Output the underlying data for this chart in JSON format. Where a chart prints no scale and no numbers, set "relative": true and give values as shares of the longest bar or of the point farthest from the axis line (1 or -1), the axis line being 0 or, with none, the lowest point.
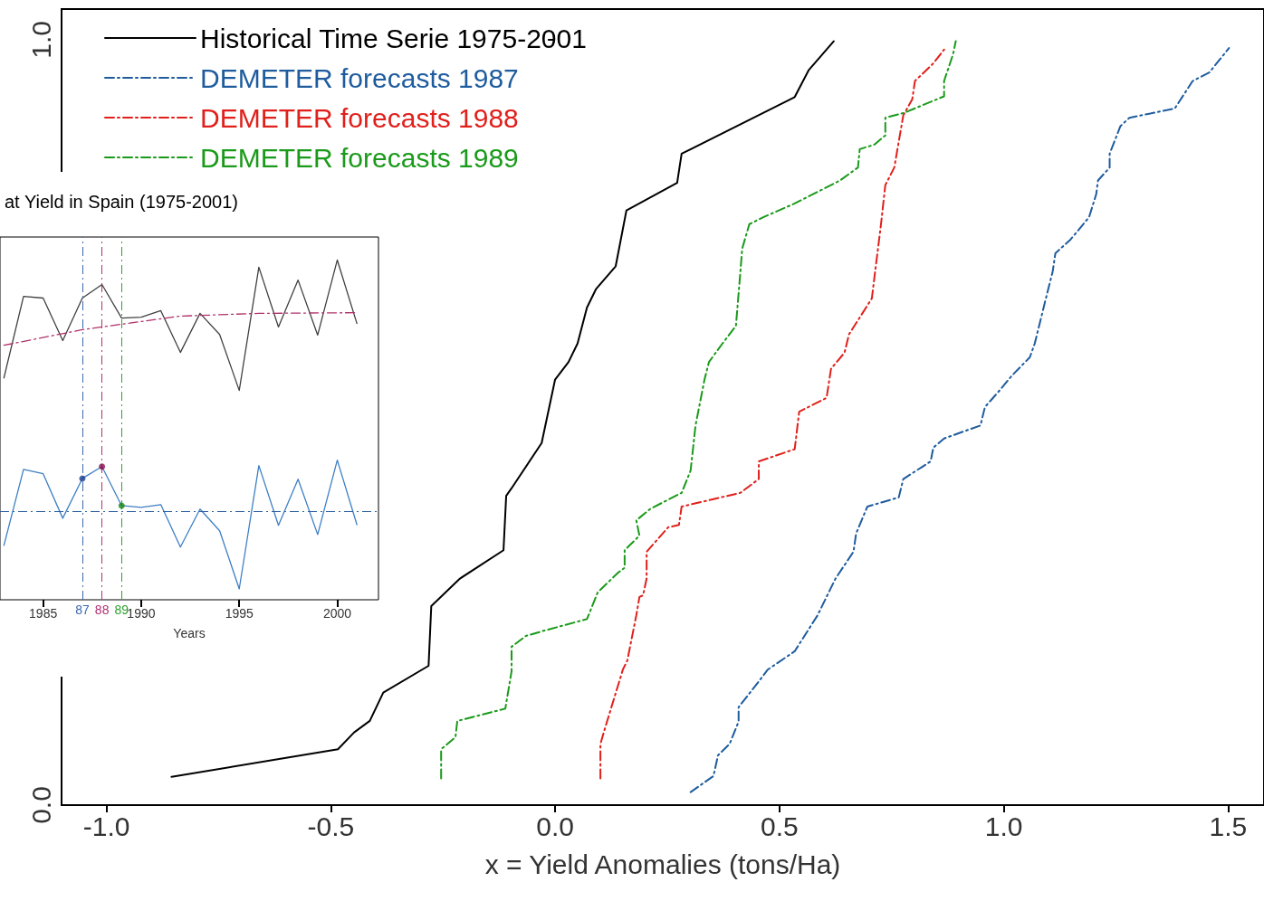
{
  "chart_data": [
    {
      "type": "line",
      "xlabel": "x = Yield Anomalies (tons/Ha)",
      "xlim": [
        -1.1,
        1.58
      ],
      "ylim": [
        0,
        1.04
      ],
      "xticks": [
        {
          "value": -1,
          "label": "-1.0"
        },
        {
          "value": -0.5,
          "label": "-0.5"
        },
        {
          "value": 0,
          "label": "0.0"
        },
        {
          "value": 0.5,
          "label": "0.5"
        },
        {
          "value": 1,
          "label": "1.0"
        },
        {
          "value": 1.5,
          "label": "1.5"
        }
      ],
      "yticks": [
        {
          "value": 0,
          "label": "0.0"
        },
        {
          "value": 1,
          "label": "1.0"
        }
      ],
      "grid": false,
      "legend": "top left",
      "marker": "none",
      "series": [
        {
          "name": "Historical Time Serie 1975-2001",
          "color": "#000000",
          "line_style": "solid",
          "x": [
            -0.855,
            -0.484,
            -0.448,
            -0.413,
            -0.383,
            -0.282,
            -0.276,
            -0.212,
            -0.115,
            -0.109,
            -0.097,
            -0.03,
            0,
            0.03,
            0.05,
            0.071,
            0.091,
            0.135,
            0.159,
            0.272,
            0.282,
            0.534,
            0.565,
            0.621
          ],
          "values": [
            0.037,
            0.073,
            0.095,
            0.11,
            0.147,
            0.182,
            0.26,
            0.296,
            0.333,
            0.404,
            0.414,
            0.473,
            0.556,
            0.579,
            0.603,
            0.65,
            0.674,
            0.704,
            0.777,
            0.813,
            0.851,
            0.925,
            0.96,
            0.998
          ]
        },
        {
          "name": "DEMETER forecasts 1987",
          "color": "#1f5c9e",
          "line_style": "dashed",
          "x": [
            0.302,
            0.353,
            0.363,
            0.389,
            0.409,
            0.409,
            0.444,
            0.474,
            0.534,
            0.585,
            0.625,
            0.665,
            0.671,
            0.696,
            0.766,
            0.776,
            0.837,
            0.843,
            0.867,
            0.948,
            0.958,
            0.994,
            1.018,
            1.058,
            1.069,
            1.099,
            1.109,
            1.115,
            1.149,
            1.19,
            1.206,
            1.21,
            1.236,
            1.236,
            1.26,
            1.28,
            1.381,
            1.421,
            1.458,
            1.502
          ],
          "values": [
            0.017,
            0.038,
            0.065,
            0.08,
            0.109,
            0.128,
            0.154,
            0.177,
            0.201,
            0.248,
            0.296,
            0.331,
            0.355,
            0.39,
            0.402,
            0.426,
            0.449,
            0.467,
            0.479,
            0.496,
            0.52,
            0.544,
            0.561,
            0.585,
            0.603,
            0.674,
            0.697,
            0.721,
            0.739,
            0.768,
            0.798,
            0.816,
            0.833,
            0.851,
            0.887,
            0.898,
            0.91,
            0.946,
            0.957,
            0.989
          ]
        },
        {
          "name": "DEMETER forecasts 1988",
          "color": "#e0201b",
          "line_style": "dashed",
          "x": [
            0.101,
            0.101,
            0.111,
            0.151,
            0.161,
            0.181,
            0.188,
            0.196,
            0.204,
            0.204,
            0.252,
            0.276,
            0.282,
            0.413,
            0.454,
            0.454,
            0.534,
            0.544,
            0.605,
            0.615,
            0.645,
            0.655,
            0.706,
            0.712,
            0.726,
            0.736,
            0.756,
            0.776,
            0.796,
            0.802,
            0.843,
            0.867
          ],
          "values": [
            0.035,
            0.08,
            0.1,
            0.177,
            0.189,
            0.248,
            0.272,
            0.274,
            0.296,
            0.331,
            0.363,
            0.366,
            0.39,
            0.408,
            0.426,
            0.449,
            0.465,
            0.514,
            0.532,
            0.57,
            0.591,
            0.615,
            0.662,
            0.691,
            0.757,
            0.81,
            0.833,
            0.901,
            0.922,
            0.946,
            0.969,
            0.987
          ]
        },
        {
          "name": "DEMETER forecasts 1989",
          "color": "#1a9a1a",
          "line_style": "dashed",
          "x": [
            -0.254,
            -0.254,
            -0.222,
            -0.218,
            -0.111,
            -0.097,
            -0.097,
            -0.065,
            -0.024,
            0.071,
            0.091,
            0.095,
            0.141,
            0.155,
            0.155,
            0.188,
            0.181,
            0.212,
            0.282,
            0.302,
            0.313,
            0.333,
            0.343,
            0.373,
            0.403,
            0.413,
            0.417,
            0.433,
            0.464,
            0.534,
            0.635,
            0.675,
            0.679,
            0.712,
            0.736,
            0.736,
            0.776,
            0.867,
            0.867,
            0.887,
            0.893
          ],
          "values": [
            0.035,
            0.073,
            0.089,
            0.11,
            0.126,
            0.175,
            0.207,
            0.221,
            0.228,
            0.243,
            0.272,
            0.278,
            0.304,
            0.31,
            0.333,
            0.352,
            0.372,
            0.387,
            0.408,
            0.437,
            0.496,
            0.556,
            0.579,
            0.603,
            0.626,
            0.697,
            0.727,
            0.759,
            0.768,
            0.786,
            0.816,
            0.833,
            0.857,
            0.863,
            0.875,
            0.898,
            0.904,
            0.926,
            0.946,
            0.981,
            0.998
          ]
        }
      ]
    },
    {
      "type": "line",
      "title": "at Yield in Spain (1975-2001)",
      "xlabel": "Years",
      "relative": true,
      "xlim": [
        1982.8,
        2002.1
      ],
      "xticks": [
        1985,
        1990,
        1995,
        2000
      ],
      "grid": false,
      "legend": false,
      "marker": "none",
      "x": [
        1983,
        1984,
        1985,
        1986,
        1987,
        1988,
        1989,
        1990,
        1991,
        1992,
        1993,
        1994,
        1995,
        1996,
        1997,
        1998,
        1999,
        2000,
        2001
      ],
      "series": [
        {
          "color": "#404040",
          "line_style": "solid",
          "values": [
            0.653,
            0.893,
            0.888,
            0.763,
            0.888,
            0.928,
            0.829,
            0.832,
            0.851,
            0.728,
            0.843,
            0.781,
            0.616,
            0.979,
            0.803,
            0.941,
            0.779,
            1,
            0.813
          ]
        },
        {
          "color": "#3d7fc4",
          "line_style": "solid",
          "values": [
            0.16,
            0.384,
            0.371,
            0.24,
            0.357,
            0.392,
            0.277,
            0.272,
            0.28,
            0.155,
            0.267,
            0.203,
            0.032,
            0.395,
            0.219,
            0.355,
            0.192,
            0.411,
            0.221
          ]
        },
        {
          "color": "#b0306a",
          "line_style": "dashed",
          "x": [
            1983,
            1987,
            1992,
            1996,
            2001
          ],
          "values": [
            0.749,
            0.795,
            0.835,
            0.843,
            0.845
          ]
        },
        {
          "type": "scatter",
          "marker": "circle",
          "x": [
            1987,
            1988,
            1989
          ],
          "values": [
            0.357,
            0.392,
            0.277
          ],
          "colors": [
            "#1a3f8f",
            "#8a1050",
            "#1a8a1a"
          ]
        }
      ],
      "ref_lines": [
        {
          "axis": "y",
          "value": 0.256,
          "color": "#2a5fa0",
          "line_style": "dashed"
        },
        {
          "axis": "x",
          "value": 1987,
          "color": "#3a6ab0",
          "line_style": "dashed"
        },
        {
          "axis": "x",
          "value": 1988,
          "color": "#b03070",
          "line_style": "dashed"
        },
        {
          "axis": "x",
          "value": 1989,
          "color": "#30a030",
          "line_style": "dashed"
        }
      ],
      "annotations": [
        "87",
        "88",
        "89"
      ]
    }
  ]
}
